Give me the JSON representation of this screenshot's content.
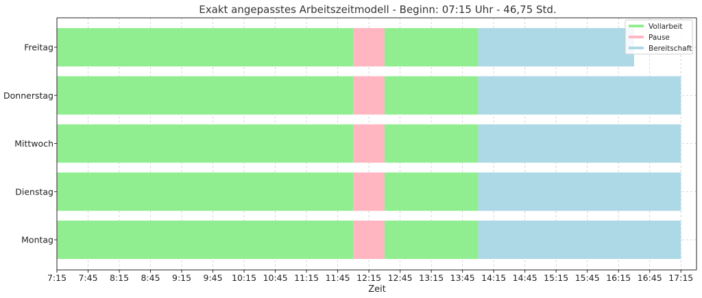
{
  "chart_data": {
    "type": "bar",
    "orientation": "horizontal",
    "stacked": true,
    "title": "Exakt angepasstes Arbeitszeitmodell - Beginn: 07:15 Uhr - 46,75 Std.",
    "xlabel": "Zeit",
    "ylabel": "",
    "grid": true,
    "legend_position": "top-right",
    "x_domain": [
      "7:15",
      "17:30"
    ],
    "x_ticks": [
      "7:15",
      "7:45",
      "8:15",
      "8:45",
      "9:15",
      "9:45",
      "10:15",
      "10:45",
      "11:15",
      "11:45",
      "12:15",
      "12:45",
      "13:15",
      "13:45",
      "14:15",
      "14:45",
      "15:15",
      "15:45",
      "16:15",
      "16:45",
      "17:15"
    ],
    "categories": [
      "Montag",
      "Dienstag",
      "Mittwoch",
      "Donnerstag",
      "Freitag"
    ],
    "series": [
      {
        "name": "Vollarbeit",
        "color": "#90ee90"
      },
      {
        "name": "Pause",
        "color": "#ffb6c1"
      },
      {
        "name": "Bereitschaft",
        "color": "#add8e6"
      }
    ],
    "segments": [
      {
        "day": "Montag",
        "series": "Vollarbeit",
        "start": "7:15",
        "end": "12:00"
      },
      {
        "day": "Montag",
        "series": "Pause",
        "start": "12:00",
        "end": "12:30"
      },
      {
        "day": "Montag",
        "series": "Vollarbeit",
        "start": "12:30",
        "end": "14:00"
      },
      {
        "day": "Montag",
        "series": "Bereitschaft",
        "start": "14:00",
        "end": "17:15"
      },
      {
        "day": "Dienstag",
        "series": "Vollarbeit",
        "start": "7:15",
        "end": "12:00"
      },
      {
        "day": "Dienstag",
        "series": "Pause",
        "start": "12:00",
        "end": "12:30"
      },
      {
        "day": "Dienstag",
        "series": "Vollarbeit",
        "start": "12:30",
        "end": "14:00"
      },
      {
        "day": "Dienstag",
        "series": "Bereitschaft",
        "start": "14:00",
        "end": "17:15"
      },
      {
        "day": "Mittwoch",
        "series": "Vollarbeit",
        "start": "7:15",
        "end": "12:00"
      },
      {
        "day": "Mittwoch",
        "series": "Pause",
        "start": "12:00",
        "end": "12:30"
      },
      {
        "day": "Mittwoch",
        "series": "Vollarbeit",
        "start": "12:30",
        "end": "14:00"
      },
      {
        "day": "Mittwoch",
        "series": "Bereitschaft",
        "start": "14:00",
        "end": "17:15"
      },
      {
        "day": "Donnerstag",
        "series": "Vollarbeit",
        "start": "7:15",
        "end": "12:00"
      },
      {
        "day": "Donnerstag",
        "series": "Pause",
        "start": "12:00",
        "end": "12:30"
      },
      {
        "day": "Donnerstag",
        "series": "Vollarbeit",
        "start": "12:30",
        "end": "14:00"
      },
      {
        "day": "Donnerstag",
        "series": "Bereitschaft",
        "start": "14:00",
        "end": "17:15"
      },
      {
        "day": "Freitag",
        "series": "Vollarbeit",
        "start": "7:15",
        "end": "12:00"
      },
      {
        "day": "Freitag",
        "series": "Pause",
        "start": "12:00",
        "end": "12:30"
      },
      {
        "day": "Freitag",
        "series": "Vollarbeit",
        "start": "12:30",
        "end": "14:00"
      },
      {
        "day": "Freitag",
        "series": "Bereitschaft",
        "start": "14:00",
        "end": "16:30"
      }
    ]
  }
}
